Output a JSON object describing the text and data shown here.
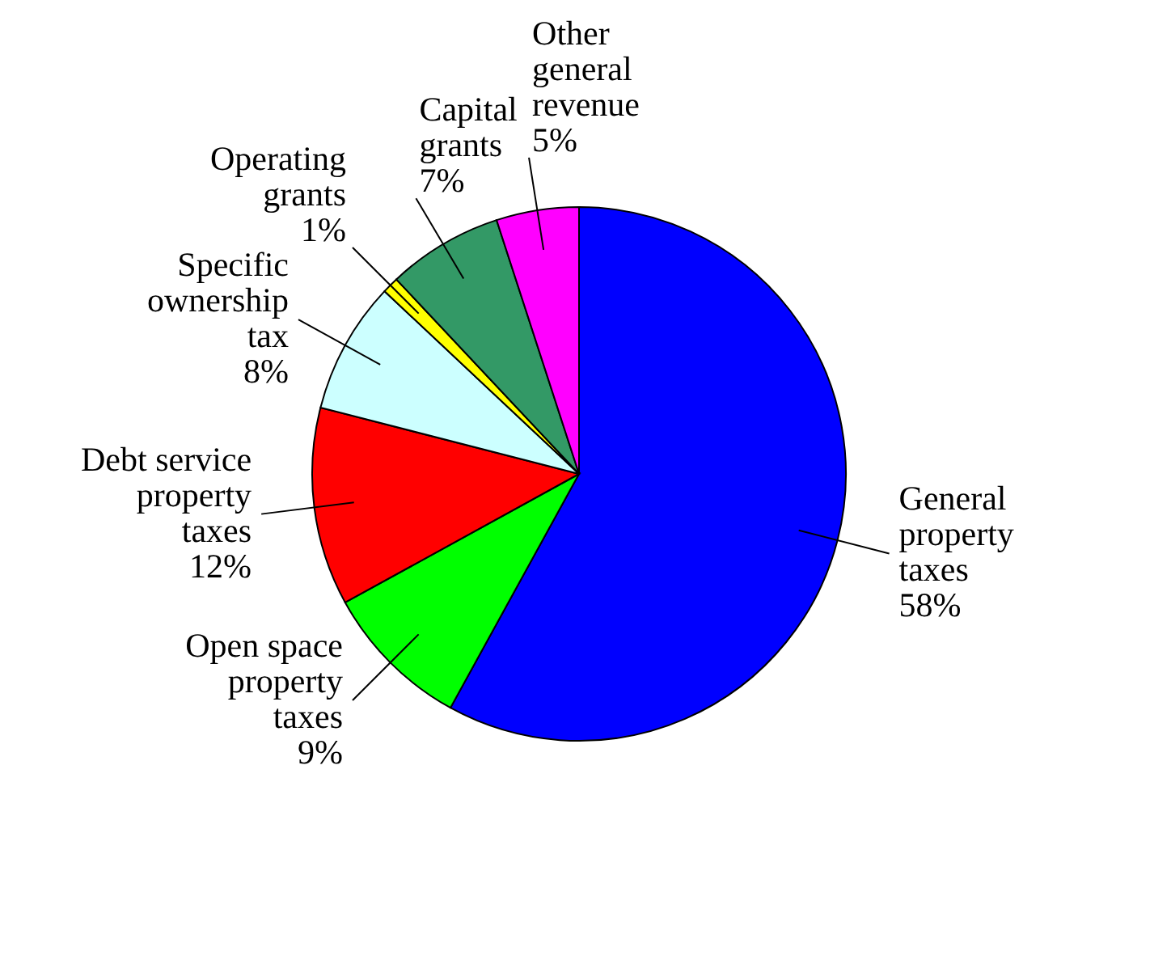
{
  "chart_data": {
    "type": "pie",
    "categories": [
      "General property taxes",
      "Open space property taxes",
      "Debt service property taxes",
      "Specific ownership tax",
      "Operating grants",
      "Capital grants",
      "Other general revenue"
    ],
    "values": [
      58,
      9,
      12,
      8,
      1,
      7,
      5
    ],
    "value_labels": [
      "58%",
      "9%",
      "12%",
      "8%",
      "1%",
      "7%",
      "5%"
    ],
    "colors": [
      "#0000ff",
      "#00ff00",
      "#ff0000",
      "#ccffff",
      "#ffff00",
      "#339966",
      "#ff00ff"
    ],
    "legend": false
  }
}
